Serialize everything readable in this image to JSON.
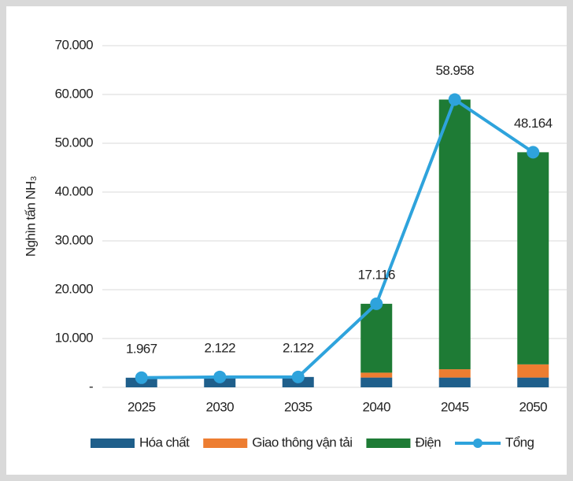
{
  "chart_data": {
    "type": "stacked_bar_line",
    "y_label": "Nghìn tấn NH₃",
    "categories": [
      "2025",
      "2030",
      "2035",
      "2040",
      "2045",
      "2050"
    ],
    "series": [
      {
        "name": "Hóa chất",
        "color": "#1f5f8b",
        "values": [
          1967,
          2122,
          2122,
          2000,
          2000,
          2000
        ]
      },
      {
        "name": "Giao thông vận tải",
        "color": "#ed7d31",
        "values": [
          0,
          0,
          0,
          1000,
          1700,
          2700
        ]
      },
      {
        "name": "Điện",
        "color": "#1e7b35",
        "values": [
          0,
          0,
          0,
          14116,
          55258,
          43464
        ]
      }
    ],
    "line": {
      "name": "Tổng",
      "color": "#2ea3dc",
      "values": [
        1967,
        2122,
        2122,
        17116,
        58958,
        48164
      ],
      "value_labels": [
        "1.967",
        "2.122",
        "2.122",
        "17.116",
        "58.958",
        "48.164"
      ]
    },
    "ylim": [
      0,
      70000
    ],
    "yticks": [
      {
        "value": 0,
        "label": "-"
      },
      {
        "value": 10000,
        "label": "10.000"
      },
      {
        "value": 20000,
        "label": "20.000"
      },
      {
        "value": 30000,
        "label": "30.000"
      },
      {
        "value": 40000,
        "label": "40.000"
      },
      {
        "value": 50000,
        "label": "50.000"
      },
      {
        "value": 60000,
        "label": "60.000"
      },
      {
        "value": 70000,
        "label": "70.000"
      }
    ],
    "grid": true
  }
}
